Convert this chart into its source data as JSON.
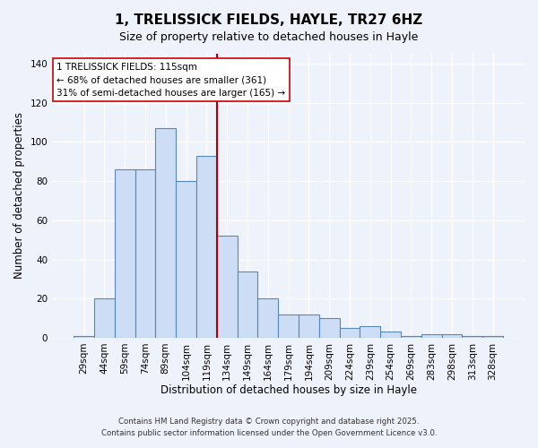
{
  "title": "1, TRELISSICK FIELDS, HAYLE, TR27 6HZ",
  "subtitle": "Size of property relative to detached houses in Hayle",
  "xlabel": "Distribution of detached houses by size in Hayle",
  "ylabel": "Number of detached properties",
  "bar_labels": [
    "29sqm",
    "44sqm",
    "59sqm",
    "74sqm",
    "89sqm",
    "104sqm",
    "119sqm",
    "134sqm",
    "149sqm",
    "164sqm",
    "179sqm",
    "194sqm",
    "209sqm",
    "224sqm",
    "239sqm",
    "254sqm",
    "269sqm",
    "283sqm",
    "298sqm",
    "313sqm",
    "328sqm"
  ],
  "bar_values": [
    1,
    20,
    86,
    86,
    107,
    80,
    93,
    52,
    34,
    20,
    12,
    12,
    10,
    5,
    6,
    3,
    1,
    2,
    2,
    1,
    1
  ],
  "bar_color": "#ccddf5",
  "bar_edge_color": "#5588bb",
  "vline_index": 6.5,
  "vline_color": "#aa0000",
  "annotation_title": "1 TRELISSICK FIELDS: 115sqm",
  "annotation_line1": "← 68% of detached houses are smaller (361)",
  "annotation_line2": "31% of semi-detached houses are larger (165) →",
  "annotation_box_facecolor": "#ffffff",
  "annotation_box_edgecolor": "#cc0000",
  "ylim": [
    0,
    145
  ],
  "yticks": [
    0,
    20,
    40,
    60,
    80,
    100,
    120,
    140
  ],
  "footnote1": "Contains HM Land Registry data © Crown copyright and database right 2025.",
  "footnote2": "Contains public sector information licensed under the Open Government Licence v3.0.",
  "background_color": "#eef2fa",
  "grid_color": "#ffffff",
  "title_fontsize": 11,
  "subtitle_fontsize": 9,
  "axis_label_fontsize": 8.5,
  "tick_fontsize": 7.5
}
